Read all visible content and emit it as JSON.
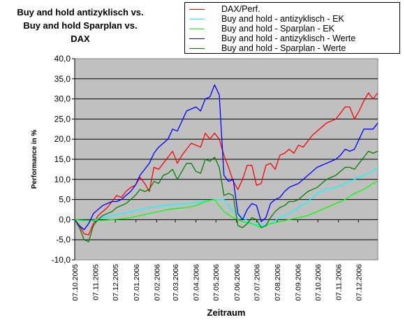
{
  "chart_data": {
    "type": "line",
    "title_lines": [
      "Buy and hold antizyklisch vs.",
      "Buy and hold Sparplan vs.",
      "DAX"
    ],
    "xlabel": "Zeitraum",
    "ylabel": "Performance in %",
    "ylim": [
      -10,
      40
    ],
    "yticks": [
      -10,
      -5,
      0,
      5,
      10,
      15,
      20,
      25,
      30,
      35,
      40
    ],
    "ytick_labels": [
      "-10,0",
      "-5,0",
      "0,0",
      "5,0",
      "10,0",
      "15,0",
      "20,0",
      "25,0",
      "30,0",
      "35,0",
      "40,0"
    ],
    "xlim": [
      "2005-10-07",
      "2007-01-05"
    ],
    "xtick_labels": [
      "07.10.2005",
      "07.11.2005",
      "07.12.2005",
      "07.01.2006",
      "07.02.2006",
      "07.03.2006",
      "07.04.2006",
      "07.05.2006",
      "07.06.2006",
      "07.07.2006",
      "07.08.2006",
      "07.09.2006",
      "07.10.2006",
      "07.11.2006",
      "07.12.2006"
    ],
    "grid": true,
    "legend_position": "top-right",
    "plot_background": "#c0c0c0",
    "series": [
      {
        "name": "DAX/Perf.",
        "color": "#ff0000",
        "x": [
          "2005-10-07",
          "2005-10-14",
          "2005-10-21",
          "2005-10-28",
          "2005-11-04",
          "2005-11-11",
          "2005-11-18",
          "2005-11-25",
          "2005-12-02",
          "2005-12-09",
          "2005-12-16",
          "2005-12-23",
          "2005-12-30",
          "2006-01-06",
          "2006-01-13",
          "2006-01-20",
          "2006-01-27",
          "2006-02-03",
          "2006-02-10",
          "2006-02-17",
          "2006-02-24",
          "2006-03-03",
          "2006-03-10",
          "2006-03-17",
          "2006-03-24",
          "2006-03-31",
          "2006-04-07",
          "2006-04-14",
          "2006-04-21",
          "2006-04-28",
          "2006-05-05",
          "2006-05-12",
          "2006-05-19",
          "2006-05-26",
          "2006-06-02",
          "2006-06-09",
          "2006-06-16",
          "2006-06-23",
          "2006-06-30",
          "2006-07-07",
          "2006-07-14",
          "2006-07-21",
          "2006-07-28",
          "2006-08-04",
          "2006-08-11",
          "2006-08-18",
          "2006-08-25",
          "2006-09-01",
          "2006-09-08",
          "2006-09-15",
          "2006-09-22",
          "2006-09-29",
          "2006-10-06",
          "2006-10-13",
          "2006-10-20",
          "2006-10-27",
          "2006-11-03",
          "2006-11-10",
          "2006-11-17",
          "2006-11-24",
          "2006-12-01",
          "2006-12-08",
          "2006-12-15",
          "2006-12-22",
          "2006-12-29",
          "2007-01-05"
        ],
        "values": [
          0,
          -1.5,
          -3.5,
          -3.8,
          -1,
          1,
          2,
          3,
          4.5,
          6,
          5.5,
          7,
          8,
          8.5,
          10.5,
          9,
          7,
          13,
          12.5,
          14,
          15.5,
          17,
          14,
          16,
          17.5,
          19,
          18.5,
          18,
          21.5,
          20,
          21.5,
          20,
          16,
          13,
          9.5,
          7.5,
          10,
          13.5,
          13.5,
          8.5,
          9,
          13.5,
          14,
          12.5,
          16,
          16.5,
          17.5,
          16.5,
          18.5,
          18,
          19.5,
          21,
          22,
          23,
          24,
          24.5,
          25,
          26.5,
          28,
          28,
          25,
          27,
          29.5,
          31.5,
          30,
          31.5
        ]
      },
      {
        "name": "Buy and hold - antizyklisch - EK",
        "color": "#00ffff",
        "x": [
          "2005-10-07",
          "2005-10-21",
          "2005-11-04",
          "2005-11-18",
          "2005-12-02",
          "2005-12-16",
          "2005-12-30",
          "2006-01-13",
          "2006-01-27",
          "2006-02-10",
          "2006-02-24",
          "2006-03-10",
          "2006-03-24",
          "2006-04-07",
          "2006-04-21",
          "2006-05-05",
          "2006-05-19",
          "2006-06-02",
          "2006-06-16",
          "2006-06-30",
          "2006-07-14",
          "2006-07-28",
          "2006-08-11",
          "2006-08-25",
          "2006-09-08",
          "2006-09-22",
          "2006-10-06",
          "2006-10-20",
          "2006-11-03",
          "2006-11-17",
          "2006-12-01",
          "2006-12-15",
          "2006-12-29",
          "2007-01-05"
        ],
        "values": [
          0,
          -0.3,
          -0.2,
          0.5,
          1,
          1.5,
          2,
          2.5,
          3,
          3.3,
          3.6,
          3.8,
          4,
          4.3,
          4.6,
          5,
          5,
          2,
          0.5,
          -1,
          -1.5,
          -1,
          0.5,
          1.5,
          3,
          4.5,
          6.5,
          7.5,
          8,
          9,
          10,
          11,
          12,
          13
        ]
      },
      {
        "name": "Buy and hold - Sparplan - EK",
        "color": "#00ff00",
        "x": [
          "2005-10-07",
          "2005-10-21",
          "2005-11-04",
          "2005-11-18",
          "2005-12-02",
          "2005-12-16",
          "2005-12-30",
          "2006-01-13",
          "2006-01-27",
          "2006-02-10",
          "2006-02-24",
          "2006-03-10",
          "2006-03-24",
          "2006-04-07",
          "2006-04-21",
          "2006-05-05",
          "2006-05-19",
          "2006-06-02",
          "2006-06-16",
          "2006-06-30",
          "2006-07-14",
          "2006-07-28",
          "2006-08-11",
          "2006-08-25",
          "2006-09-08",
          "2006-09-22",
          "2006-10-06",
          "2006-10-20",
          "2006-11-03",
          "2006-11-17",
          "2006-12-01",
          "2006-12-15",
          "2006-12-29",
          "2007-01-05"
        ],
        "values": [
          0,
          -0.2,
          -0.3,
          -0.2,
          0,
          0.2,
          0.5,
          1,
          1.5,
          2,
          2.5,
          2.8,
          3,
          3.5,
          4.5,
          5,
          2,
          0.5,
          -0.5,
          -1,
          -2,
          -1,
          -0.5,
          0,
          0.5,
          1,
          2,
          3,
          4,
          5,
          6.5,
          7.5,
          9,
          9.5
        ]
      },
      {
        "name": "Buy and hold - antizyklisch - Werte",
        "color": "#0000ff",
        "x": [
          "2005-10-07",
          "2005-10-14",
          "2005-10-21",
          "2005-10-28",
          "2005-11-04",
          "2005-11-11",
          "2005-11-18",
          "2005-11-25",
          "2005-12-02",
          "2005-12-09",
          "2005-12-16",
          "2005-12-23",
          "2005-12-30",
          "2006-01-06",
          "2006-01-13",
          "2006-01-20",
          "2006-01-27",
          "2006-02-03",
          "2006-02-10",
          "2006-02-17",
          "2006-02-24",
          "2006-03-03",
          "2006-03-10",
          "2006-03-17",
          "2006-03-24",
          "2006-03-31",
          "2006-04-07",
          "2006-04-14",
          "2006-04-21",
          "2006-04-28",
          "2006-05-05",
          "2006-05-12",
          "2006-05-19",
          "2006-05-26",
          "2006-06-02",
          "2006-06-09",
          "2006-06-16",
          "2006-06-23",
          "2006-06-30",
          "2006-07-07",
          "2006-07-14",
          "2006-07-21",
          "2006-07-28",
          "2006-08-04",
          "2006-08-11",
          "2006-08-18",
          "2006-08-25",
          "2006-09-01",
          "2006-09-08",
          "2006-09-15",
          "2006-09-22",
          "2006-09-29",
          "2006-10-06",
          "2006-10-13",
          "2006-10-20",
          "2006-10-27",
          "2006-11-03",
          "2006-11-10",
          "2006-11-17",
          "2006-11-24",
          "2006-12-01",
          "2006-12-08",
          "2006-12-15",
          "2006-12-22",
          "2006-12-29",
          "2007-01-05"
        ],
        "values": [
          0,
          -1.5,
          -2.5,
          -1,
          1.5,
          2.5,
          3.5,
          4,
          4.5,
          4.5,
          5,
          6,
          7,
          8.5,
          11,
          12.5,
          14,
          16.5,
          18,
          19,
          20,
          22.5,
          22,
          24.5,
          27,
          27.5,
          28,
          27,
          30,
          30.5,
          33.5,
          31,
          11,
          9.5,
          10,
          1.5,
          0,
          2.5,
          4,
          3.5,
          -0.5,
          0.5,
          4,
          5,
          5.5,
          7,
          8,
          8.5,
          9,
          10,
          11,
          12,
          13,
          13.5,
          14,
          14.5,
          15,
          16,
          17.5,
          17,
          17.5,
          20,
          22.5,
          22.5,
          22.5,
          24
        ]
      },
      {
        "name": "Buy and hold - Sparplan - Werte",
        "color": "#008000",
        "x": [
          "2005-10-07",
          "2005-10-14",
          "2005-10-21",
          "2005-10-28",
          "2005-11-04",
          "2005-11-11",
          "2005-11-18",
          "2005-11-25",
          "2005-12-02",
          "2005-12-09",
          "2005-12-16",
          "2005-12-23",
          "2005-12-30",
          "2006-01-06",
          "2006-01-13",
          "2006-01-20",
          "2006-01-27",
          "2006-02-03",
          "2006-02-10",
          "2006-02-17",
          "2006-02-24",
          "2006-03-03",
          "2006-03-10",
          "2006-03-17",
          "2006-03-24",
          "2006-03-31",
          "2006-04-07",
          "2006-04-14",
          "2006-04-21",
          "2006-04-28",
          "2006-05-05",
          "2006-05-12",
          "2006-05-19",
          "2006-05-26",
          "2006-06-02",
          "2006-06-09",
          "2006-06-16",
          "2006-06-23",
          "2006-06-30",
          "2006-07-07",
          "2006-07-14",
          "2006-07-21",
          "2006-07-28",
          "2006-08-04",
          "2006-08-11",
          "2006-08-18",
          "2006-08-25",
          "2006-09-01",
          "2006-09-08",
          "2006-09-15",
          "2006-09-22",
          "2006-09-29",
          "2006-10-06",
          "2006-10-13",
          "2006-10-20",
          "2006-10-27",
          "2006-11-03",
          "2006-11-10",
          "2006-11-17",
          "2006-11-24",
          "2006-12-01",
          "2006-12-08",
          "2006-12-15",
          "2006-12-22",
          "2006-12-29",
          "2007-01-05"
        ],
        "values": [
          0,
          -2,
          -5,
          -5.5,
          -1.5,
          0,
          1,
          1.5,
          2,
          3,
          3.5,
          4,
          5,
          6,
          7.5,
          7,
          7.5,
          9.5,
          9,
          11,
          11.5,
          12.5,
          10,
          12,
          14,
          14,
          12,
          11.5,
          15,
          14.5,
          15.5,
          13,
          6,
          6.5,
          6,
          -1.5,
          -2,
          -1,
          0.5,
          0,
          -2,
          -1.5,
          0.5,
          2,
          3,
          3.5,
          4.5,
          4.5,
          5,
          6,
          7,
          7.5,
          8,
          9,
          10,
          10.5,
          11,
          12,
          13,
          13,
          12.5,
          14,
          15.5,
          17,
          16.5,
          17
        ]
      }
    ]
  }
}
